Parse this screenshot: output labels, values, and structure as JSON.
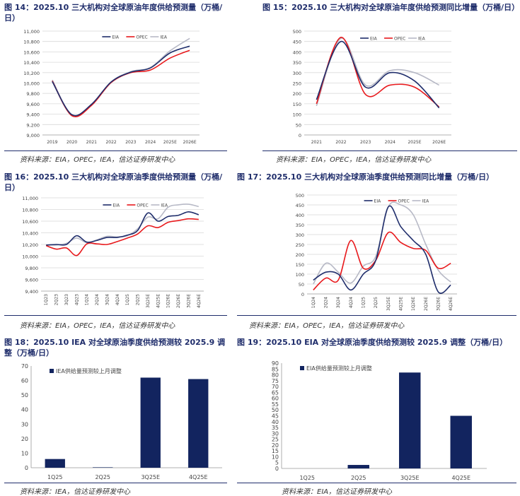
{
  "panels": [
    {
      "title": "图 14：2025.10 三大机构对全球原油年度供给预测量（万桶/日）",
      "source": "资料来源：EIA，OPEC，IEA，信达证券研发中心"
    },
    {
      "title": "图 15：2025.10 三大机构对全球原油年度供给预测同比增量（万桶/日）",
      "source": "资料来源：EIA，OPEC，IEA，信达证券研发中心"
    },
    {
      "title": "图 16：2025.10 三大机构对全球原油季度供给预测量（万桶/日）",
      "source": "资料来源：EIA，OPEC，IEA，信达证券研发中心"
    },
    {
      "title": "图 17：2025.10 三大机构对全球原油季度供给预测同比增量（万桶/日）",
      "source": "资料来源：EIA，OPEC，IEA，信达证券研发中心"
    },
    {
      "title": "图 18：2025.10 IEA 对全球原油季度供给预测较 2025.9 调整（万桶/日）",
      "source": "资料来源：IEA，信达证券研发中心"
    },
    {
      "title": "图 19：2025.10 EIA 对全球原油季度供给预测较 2025.9 调整（万桶/日）",
      "source": "资料来源：EIA，信达证券研发中心"
    }
  ],
  "colors": {
    "EIA": "#1f2d6b",
    "OPEC": "#e8191c",
    "IEA": "#b7b9c6",
    "bar": "#12245f",
    "title": "#1f2d6b"
  },
  "chart_data": [
    {
      "type": "line",
      "categories": [
        "2019",
        "2020",
        "2021",
        "2022",
        "2023",
        "2024",
        "2025E",
        "2026E"
      ],
      "ylim": [
        9000,
        11000
      ],
      "yticks": [
        9000,
        9200,
        9400,
        9600,
        9800,
        10000,
        10200,
        10400,
        10600,
        10800,
        11000
      ],
      "ytick_labels": [
        "9,000",
        "9,200",
        "9,400",
        "9,600",
        "9,800",
        "10,000",
        "10,200",
        "10,400",
        "10,600",
        "10,800",
        "11,000"
      ],
      "grid": true,
      "legend": "top-center",
      "series": [
        {
          "name": "EIA",
          "values": [
            10030,
            9390,
            9590,
            10020,
            10210,
            10290,
            10580,
            10710
          ]
        },
        {
          "name": "OPEC",
          "values": [
            10040,
            9370,
            9570,
            10010,
            10200,
            10250,
            10480,
            10630
          ]
        },
        {
          "name": "IEA",
          "values": [
            10060,
            9380,
            9580,
            10020,
            10220,
            10300,
            10620,
            10860
          ]
        }
      ]
    },
    {
      "type": "line",
      "categories": [
        "2021",
        "2022",
        "2023",
        "2024",
        "2025E",
        "2026E"
      ],
      "ylim": [
        0,
        500
      ],
      "yticks": [
        0,
        50,
        100,
        150,
        200,
        250,
        300,
        350,
        400,
        450,
        500
      ],
      "ytick_labels": [
        "0",
        "50",
        "100",
        "150",
        "200",
        "250",
        "300",
        "350",
        "400",
        "450",
        "500"
      ],
      "grid": true,
      "legend": "top-center",
      "series": [
        {
          "name": "EIA",
          "values": [
            170,
            450,
            230,
            300,
            260,
            130
          ]
        },
        {
          "name": "OPEC",
          "values": [
            150,
            470,
            195,
            240,
            230,
            135
          ]
        },
        {
          "name": "IEA",
          "values": [
            140,
            465,
            240,
            310,
            300,
            240
          ]
        }
      ]
    },
    {
      "type": "line",
      "categories": [
        "1Q23",
        "2Q23",
        "3Q23",
        "4Q23",
        "1Q24",
        "2Q24",
        "3Q24",
        "4Q24",
        "1Q25",
        "2Q25",
        "3Q25E",
        "4Q25E",
        "1Q26E",
        "2Q26E",
        "3Q26E",
        "4Q26E"
      ],
      "ylim": [
        9400,
        11000
      ],
      "yticks": [
        9400,
        9600,
        9800,
        10000,
        10200,
        10400,
        10600,
        10800,
        11000
      ],
      "ytick_labels": [
        "9,400",
        "9,600",
        "9,800",
        "10,000",
        "10,200",
        "10,400",
        "10,600",
        "10,800",
        "11,000"
      ],
      "grid": true,
      "legend": "top-center",
      "series": [
        {
          "name": "EIA",
          "values": [
            10190,
            10200,
            10200,
            10350,
            10240,
            10270,
            10320,
            10320,
            10360,
            10440,
            10740,
            10600,
            10680,
            10700,
            10760,
            10710
          ]
        },
        {
          "name": "OPEC",
          "values": [
            10180,
            10120,
            10140,
            10010,
            10210,
            10210,
            10200,
            10250,
            10310,
            10380,
            10520,
            10490,
            10580,
            10610,
            10640,
            10630
          ]
        },
        {
          "name": "IEA",
          "values": [
            10190,
            10190,
            10220,
            10310,
            10230,
            10280,
            10340,
            10330,
            10350,
            10470,
            10670,
            10640,
            10840,
            10880,
            10890,
            10850
          ]
        }
      ]
    },
    {
      "type": "line",
      "categories": [
        "1Q24",
        "2Q24",
        "3Q24",
        "4Q24",
        "1Q25",
        "2Q25",
        "3Q25E",
        "4Q25E",
        "1Q26E",
        "2Q26E",
        "3Q26E",
        "4Q26E"
      ],
      "ylim": [
        0,
        500
      ],
      "yticks": [
        0,
        50,
        100,
        150,
        200,
        250,
        300,
        350,
        400,
        450,
        500
      ],
      "ytick_labels": [
        "0",
        "50",
        "100",
        "150",
        "200",
        "250",
        "300",
        "350",
        "400",
        "450",
        "500"
      ],
      "grid": true,
      "legend": "top-center",
      "series": [
        {
          "name": "EIA",
          "values": [
            70,
            110,
            100,
            20,
            100,
            170,
            440,
            340,
            270,
            200,
            10,
            45
          ]
        },
        {
          "name": "OPEC",
          "values": [
            20,
            80,
            70,
            270,
            130,
            170,
            310,
            260,
            230,
            220,
            130,
            155
          ]
        },
        {
          "name": "IEA",
          "values": [
            50,
            155,
            110,
            55,
            140,
            190,
            440,
            450,
            400,
            250,
            120,
            60
          ]
        }
      ]
    },
    {
      "type": "bar",
      "categories": [
        "1Q25",
        "2Q25",
        "3Q25E",
        "4Q25E"
      ],
      "values": [
        6,
        0.3,
        62,
        61
      ],
      "ylim": [
        0,
        70
      ],
      "yticks": [
        0,
        10,
        20,
        30,
        40,
        50,
        60,
        70
      ],
      "ytick_labels": [
        "0",
        "10",
        "20",
        "30",
        "40",
        "50",
        "60",
        "70"
      ],
      "legend": "top-left",
      "series_name": "IEA供给量预测较上月调整"
    },
    {
      "type": "bar",
      "categories": [
        "1Q25",
        "2Q25",
        "3Q25E",
        "4Q25E"
      ],
      "values": [
        0,
        3,
        82,
        45
      ],
      "ylim": [
        0,
        90
      ],
      "yticks": [
        0,
        5,
        10,
        15,
        20,
        25,
        30,
        35,
        40,
        45,
        50,
        55,
        60,
        65,
        70,
        75,
        80,
        85,
        90
      ],
      "ytick_labels": [
        "0",
        "5",
        "10",
        "15",
        "20",
        "25",
        "30",
        "35",
        "40",
        "45",
        "50",
        "55",
        "60",
        "65",
        "70",
        "75",
        "80",
        "85",
        "90"
      ],
      "legend": "top-left",
      "series_name": "EIA供给量预测较上月调整"
    }
  ]
}
